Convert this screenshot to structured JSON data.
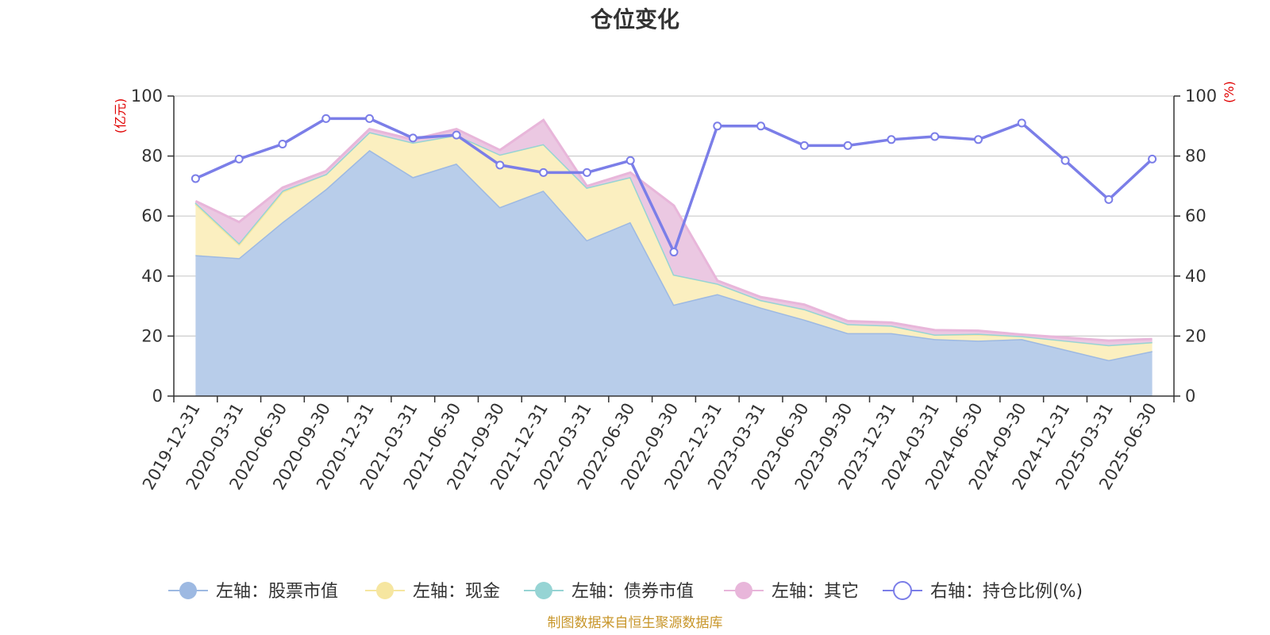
{
  "title": "仓位变化",
  "source_note": "制图数据来自恒生聚源数据库",
  "chart_data": {
    "type": "area",
    "categories": [
      "2019-12-31",
      "2020-03-31",
      "2020-06-30",
      "2020-09-30",
      "2020-12-31",
      "2021-03-31",
      "2021-06-30",
      "2021-09-30",
      "2021-12-31",
      "2022-03-31",
      "2022-06-30",
      "2022-09-30",
      "2022-12-31",
      "2023-03-31",
      "2023-06-30",
      "2023-09-30",
      "2023-12-31",
      "2024-03-31",
      "2024-06-30",
      "2024-09-30",
      "2024-12-31",
      "2025-03-31",
      "2025-06-30"
    ],
    "left_axis": {
      "unit": "(亿元)",
      "ylim": [
        0,
        100
      ],
      "ticks": [
        "0",
        "20",
        "40",
        "60",
        "80",
        "100"
      ]
    },
    "right_axis": {
      "unit": "(%)",
      "ylim": [
        0,
        100
      ],
      "ticks": [
        "0",
        "20",
        "40",
        "60",
        "80",
        "100"
      ]
    },
    "grid": true,
    "legend_position": "bottom",
    "stacked": true,
    "series": [
      {
        "name": "左轴：股票市值",
        "axis": "left",
        "kind": "area",
        "color": "#9db9e2",
        "fill": "#b8cdea",
        "values": [
          47,
          46,
          58,
          69,
          82,
          73,
          77.5,
          63,
          68.5,
          52,
          58,
          30.5,
          34,
          29.5,
          25.5,
          21,
          21,
          19,
          18.5,
          19,
          15.5,
          12,
          15
        ]
      },
      {
        "name": "左轴：现金",
        "axis": "left",
        "kind": "area",
        "color": "#f6e6a0",
        "fill": "#fbefc0",
        "values": [
          17,
          4.5,
          10,
          5,
          6,
          11.5,
          9.5,
          17.5,
          15.5,
          17.5,
          15,
          10,
          3.5,
          2.5,
          3.5,
          3,
          2.5,
          1.5,
          2,
          1,
          3,
          5,
          3
        ]
      },
      {
        "name": "左轴：债券市值",
        "axis": "left",
        "kind": "area",
        "color": "#96d4d4",
        "fill": "#a9dcd8",
        "values": [
          0.5,
          0.5,
          0.5,
          0,
          0,
          0,
          0,
          0,
          0,
          0,
          0,
          0,
          0,
          0,
          0,
          0,
          0,
          0,
          0.3,
          0,
          0,
          0,
          0
        ]
      },
      {
        "name": "左轴：其它",
        "axis": "left",
        "kind": "area",
        "color": "#e8b6da",
        "fill": "#ebc8e2",
        "values": [
          0.5,
          7,
          1,
          1,
          1,
          1,
          2,
          1.5,
          8,
          0.5,
          1.5,
          23,
          1,
          1,
          1.5,
          1,
          1,
          1.5,
          1,
          0.5,
          1,
          1.5,
          1
        ]
      },
      {
        "name": "右轴：持仓比例(%)",
        "axis": "right",
        "kind": "line",
        "color": "#7b7ee8",
        "values": [
          72.5,
          79,
          84,
          92.5,
          92.5,
          86,
          87,
          77,
          74.5,
          74.5,
          78.5,
          48,
          90,
          90,
          83.5,
          83.5,
          85.5,
          86.5,
          85.5,
          91,
          78.5,
          65.5,
          79
        ]
      }
    ]
  }
}
